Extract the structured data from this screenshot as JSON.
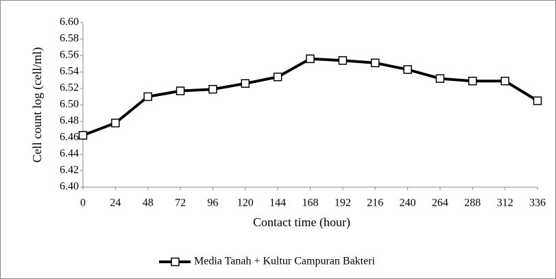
{
  "chart_data": {
    "type": "line",
    "x_label": "Contact time (hour)",
    "y_label": "Cell count log (cell/ml)",
    "x": [
      0,
      24,
      48,
      72,
      96,
      120,
      144,
      168,
      192,
      216,
      240,
      264,
      288,
      312,
      336
    ],
    "series": [
      {
        "name": "Media Tanah + Kultur Campuran Bakteri",
        "color": "#000000",
        "values": [
          6.463,
          6.478,
          6.51,
          6.517,
          6.519,
          6.526,
          6.534,
          6.556,
          6.554,
          6.551,
          6.543,
          6.532,
          6.529,
          6.529,
          6.505
        ]
      }
    ],
    "xlim": [
      0,
      336
    ],
    "xticks": [
      0,
      24,
      48,
      72,
      96,
      120,
      144,
      168,
      192,
      216,
      240,
      264,
      288,
      312,
      336
    ],
    "ylim": [
      6.4,
      6.6
    ],
    "yticks": [
      {
        "value": 6.4,
        "label": "6.40"
      },
      6.42,
      6.44,
      6.46,
      6.48,
      {
        "value": 6.5,
        "label": "6.50"
      },
      6.52,
      6.54,
      6.56,
      6.58,
      {
        "value": 6.6,
        "label": "6.60"
      }
    ],
    "grid": false,
    "legend": "bottom"
  }
}
